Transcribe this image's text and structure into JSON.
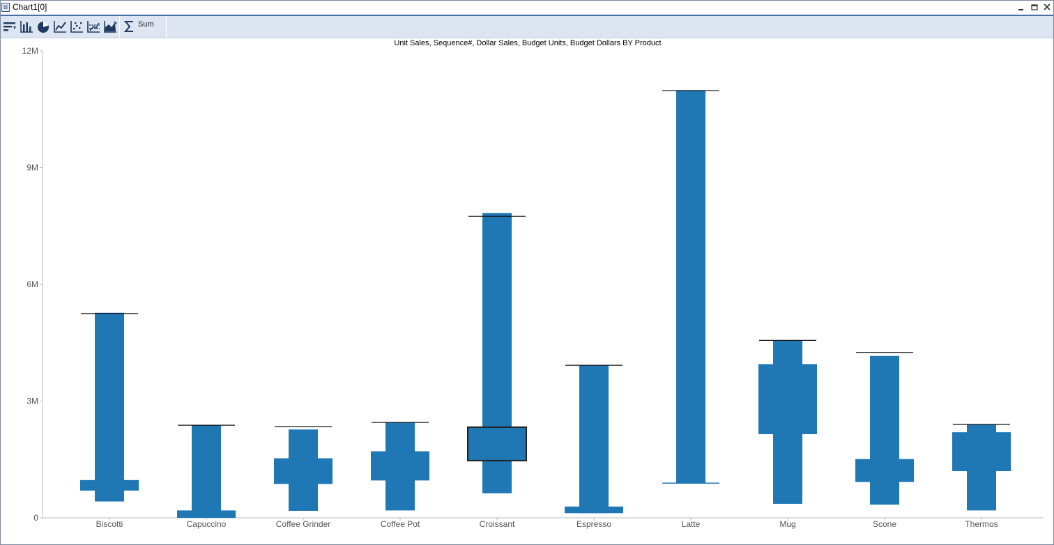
{
  "window": {
    "title": "Chart1[0]",
    "icon": "chart-window-icon",
    "controls": [
      "minimize-icon",
      "restore-icon",
      "close-icon"
    ]
  },
  "toolbar": {
    "tools": [
      "sort-icon",
      "bar-chart-icon",
      "pie-chart-icon",
      "line-chart-icon",
      "scatter-chart-icon",
      "trend-chart-icon",
      "area-chart-icon",
      "sum-icon"
    ],
    "sum_label": "Sum"
  },
  "chart_data": {
    "type": "bar",
    "title": "Unit Sales, Sequence#, Dollar Sales, Budget Units, Budget Dollars BY Product",
    "xlabel": "",
    "ylabel": "",
    "ylim": [
      0,
      12000000
    ],
    "yticks": [
      {
        "value": 0,
        "label": "0"
      },
      {
        "value": 3000000,
        "label": "3M"
      },
      {
        "value": 6000000,
        "label": "6M"
      },
      {
        "value": 9000000,
        "label": "9M"
      },
      {
        "value": 12000000,
        "label": "12M"
      }
    ],
    "grid": false,
    "legend": "none",
    "color": "#1f77b4",
    "categories": [
      "Biscotti",
      "Capuccino",
      "Coffee Grinder",
      "Coffee Pot",
      "Croissant",
      "Espresso",
      "Latte",
      "Mug",
      "Scone",
      "Thermos"
    ],
    "range_bars": [
      {
        "category": "Biscotti",
        "low": 420000,
        "high": 5270000
      },
      {
        "category": "Capuccino",
        "low": 0,
        "high": 2380000
      },
      {
        "category": "Coffee Grinder",
        "low": 180000,
        "high": 2270000
      },
      {
        "category": "Coffee Pot",
        "low": 190000,
        "high": 2460000
      },
      {
        "category": "Croissant",
        "low": 630000,
        "high": 7830000
      },
      {
        "category": "Espresso",
        "low": 120000,
        "high": 3920000
      },
      {
        "category": "Latte",
        "low": 890000,
        "high": 10990000
      },
      {
        "category": "Mug",
        "low": 360000,
        "high": 4560000
      },
      {
        "category": "Scone",
        "low": 340000,
        "high": 4160000
      },
      {
        "category": "Thermos",
        "low": 190000,
        "high": 2400000
      }
    ],
    "boxes": [
      {
        "category": "Biscotti",
        "low": 700000,
        "high": 970000,
        "highlighted": false
      },
      {
        "category": "Capuccino",
        "low": 0,
        "high": 190000,
        "highlighted": false
      },
      {
        "category": "Coffee Grinder",
        "low": 870000,
        "high": 1530000,
        "highlighted": false
      },
      {
        "category": "Coffee Pot",
        "low": 960000,
        "high": 1710000,
        "highlighted": false
      },
      {
        "category": "Croissant",
        "low": 1470000,
        "high": 2330000,
        "highlighted": true
      },
      {
        "category": "Espresso",
        "low": 120000,
        "high": 290000,
        "highlighted": false
      },
      {
        "category": "Latte",
        "low": 890000,
        "high": 890000,
        "highlighted": false
      },
      {
        "category": "Mug",
        "low": 2150000,
        "high": 3950000,
        "highlighted": false
      },
      {
        "category": "Scone",
        "low": 920000,
        "high": 1510000,
        "highlighted": false
      },
      {
        "category": "Thermos",
        "low": 1200000,
        "high": 2200000,
        "highlighted": false
      }
    ],
    "target_lines": [
      {
        "category": "Biscotti",
        "value": 5250000
      },
      {
        "category": "Capuccino",
        "value": 2380000
      },
      {
        "category": "Coffee Grinder",
        "value": 2340000
      },
      {
        "category": "Coffee Pot",
        "value": 2450000
      },
      {
        "category": "Croissant",
        "value": 7750000
      },
      {
        "category": "Espresso",
        "value": 3920000
      },
      {
        "category": "Latte",
        "value": 10980000
      },
      {
        "category": "Mug",
        "value": 4560000
      },
      {
        "category": "Scone",
        "value": 4250000
      },
      {
        "category": "Thermos",
        "value": 2400000
      }
    ],
    "baseline_lines": [
      {
        "category": "Latte",
        "value": 890000
      }
    ]
  }
}
